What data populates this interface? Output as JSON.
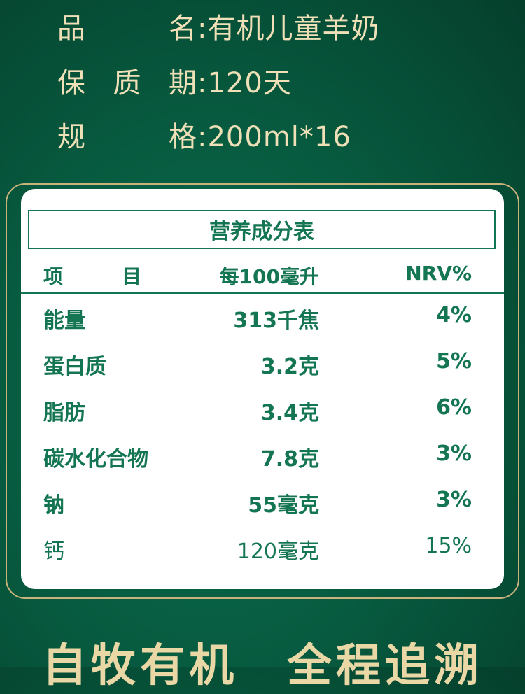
{
  "info": [
    {
      "label": "品名",
      "value": ":有机儿童羊奶"
    },
    {
      "label": "保质期",
      "value": ":120天"
    },
    {
      "label": "规格",
      "value": ":200ml*16"
    }
  ],
  "table": {
    "title": "营养成分表",
    "headers": [
      "项　　　目",
      "每100毫升",
      "NRV%"
    ],
    "rows": [
      {
        "item": "能量",
        "amount": "313千焦",
        "nrv": "4%"
      },
      {
        "item": "蛋白质",
        "amount": "3.2克",
        "nrv": "5%"
      },
      {
        "item": "脂肪",
        "amount": "3.4克",
        "nrv": "6%"
      },
      {
        "item": "碳水化合物",
        "amount": "7.8克",
        "nrv": "3%"
      },
      {
        "item": "钠",
        "amount": "55毫克",
        "nrv": "3%"
      },
      {
        "item": "钙",
        "amount": "120毫克",
        "nrv": "15%"
      }
    ]
  },
  "slogan": "自牧有机　全程追溯",
  "colors": {
    "brand_green": "#137552",
    "gold": "#efe0b8"
  }
}
